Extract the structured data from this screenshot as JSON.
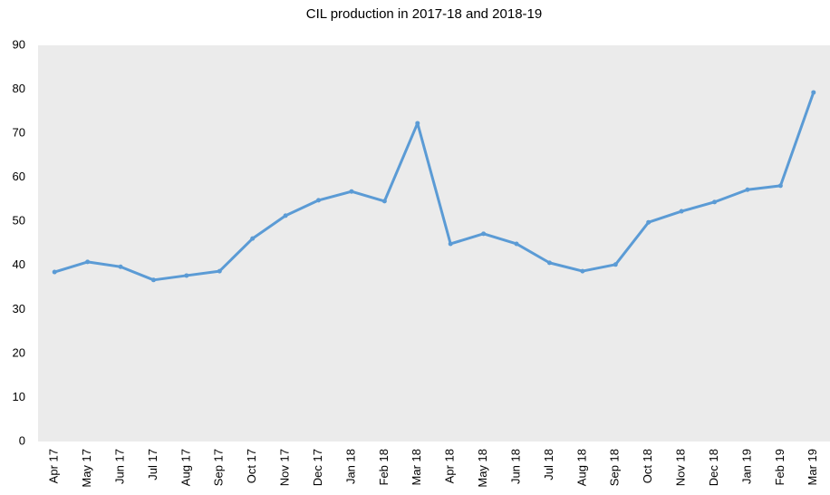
{
  "chart_data": {
    "type": "line",
    "title": "CIL production in 2017-18 and 2018-19",
    "categories": [
      "Apr 17",
      "May 17",
      "Jun 17",
      "Jul 17",
      "Aug 17",
      "Sep 17",
      "Oct 17",
      "Nov 17",
      "Dec 17",
      "Jan 18",
      "Feb 18",
      "Mar 18",
      "Apr 18",
      "May 18",
      "Jun 18",
      "Jul 18",
      "Aug 18",
      "Sep 18",
      "Oct 18",
      "Nov 18",
      "Dec 18",
      "Jan 19",
      "Feb 19",
      "Mar 19"
    ],
    "values": [
      38.5,
      40.8,
      39.7,
      36.7,
      37.7,
      38.7,
      46.1,
      51.3,
      54.8,
      56.8,
      54.6,
      72.3,
      44.9,
      47.2,
      44.9,
      40.6,
      38.7,
      40.2,
      49.8,
      52.3,
      54.4,
      57.2,
      58.1,
      79.3
    ],
    "color": "#5b9bd5",
    "ylim": [
      0,
      90
    ],
    "yticks": [
      0,
      10,
      20,
      30,
      40,
      50,
      60,
      70,
      80,
      90
    ],
    "grid": false
  }
}
